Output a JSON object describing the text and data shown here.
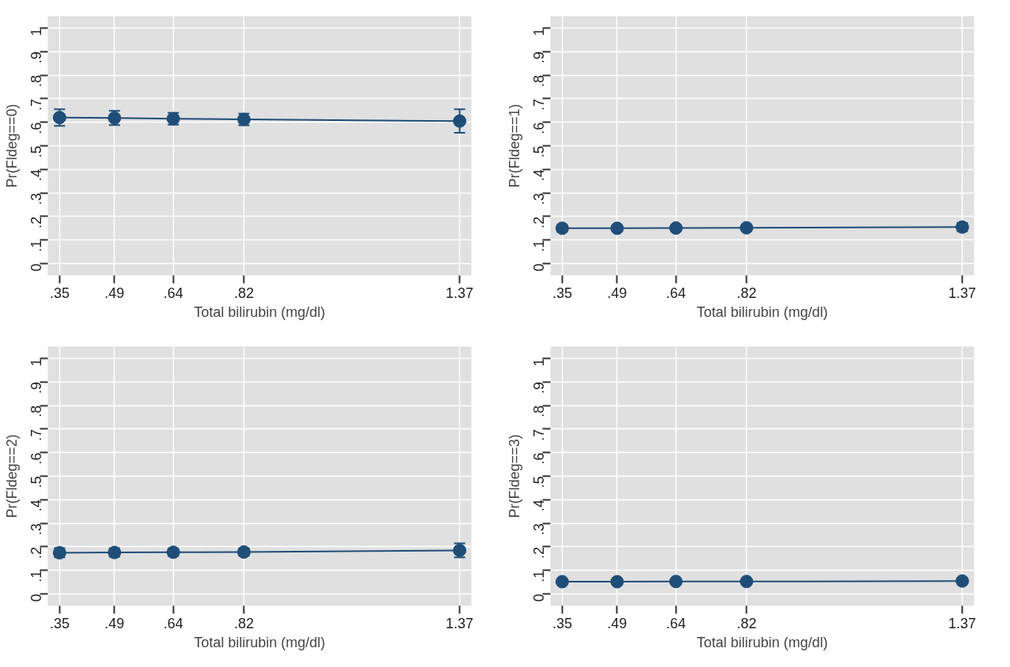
{
  "chart_data": [
    {
      "type": "line",
      "xlabel": "Total bilirubin (mg/dl)",
      "ylabel": "Pr(Fldeg==0)",
      "x": [
        0.35,
        0.49,
        0.64,
        0.82,
        1.37
      ],
      "series": [
        {
          "color": "#1f4e79",
          "values": [
            0.62,
            0.618,
            0.615,
            0.612,
            0.605
          ],
          "errors": [
            0.035,
            0.03,
            0.025,
            0.025,
            0.05
          ]
        }
      ],
      "xlim": [
        0.32,
        1.4
      ],
      "ylim": [
        -0.05,
        1.05
      ],
      "marker": "circle",
      "grid": true,
      "xticks": [
        {
          "value": 0.35,
          "label": ".35"
        },
        {
          "value": 0.49,
          "label": ".49"
        },
        {
          "value": 0.64,
          "label": ".64"
        },
        {
          "value": 0.82,
          "label": ".82"
        },
        {
          "value": 1.37,
          "label": "1.37"
        }
      ],
      "yticks": [
        0,
        {
          "value": 0.1,
          "label": ".1"
        },
        {
          "value": 0.2,
          "label": ".2"
        },
        {
          "value": 0.3,
          "label": ".3"
        },
        {
          "value": 0.4,
          "label": ".4"
        },
        {
          "value": 0.5,
          "label": ".5"
        },
        {
          "value": 0.6,
          "label": ".6"
        },
        {
          "value": 0.7,
          "label": ".7"
        },
        {
          "value": 0.8,
          "label": ".8"
        },
        {
          "value": 0.9,
          "label": ".9"
        },
        1
      ]
    },
    {
      "type": "line",
      "xlabel": "Total bilirubin (mg/dl)",
      "ylabel": "Pr(Fldeg==1)",
      "x": [
        0.35,
        0.49,
        0.64,
        0.82,
        1.37
      ],
      "series": [
        {
          "color": "#1f4e79",
          "values": [
            0.15,
            0.15,
            0.151,
            0.152,
            0.155
          ],
          "errors": [
            0.015,
            0.013,
            0.012,
            0.012,
            0.018
          ]
        }
      ],
      "xlim": [
        0.32,
        1.4
      ],
      "ylim": [
        -0.05,
        1.05
      ],
      "marker": "circle",
      "grid": true,
      "xticks": [
        {
          "value": 0.35,
          "label": ".35"
        },
        {
          "value": 0.49,
          "label": ".49"
        },
        {
          "value": 0.64,
          "label": ".64"
        },
        {
          "value": 0.82,
          "label": ".82"
        },
        {
          "value": 1.37,
          "label": "1.37"
        }
      ],
      "yticks": [
        0,
        {
          "value": 0.1,
          "label": ".1"
        },
        {
          "value": 0.2,
          "label": ".2"
        },
        {
          "value": 0.3,
          "label": ".3"
        },
        {
          "value": 0.4,
          "label": ".4"
        },
        {
          "value": 0.5,
          "label": ".5"
        },
        {
          "value": 0.6,
          "label": ".6"
        },
        {
          "value": 0.7,
          "label": ".7"
        },
        {
          "value": 0.8,
          "label": ".8"
        },
        {
          "value": 0.9,
          "label": ".9"
        },
        1
      ]
    },
    {
      "type": "line",
      "xlabel": "Total bilirubin (mg/dl)",
      "ylabel": "Pr(Fldeg==2)",
      "x": [
        0.35,
        0.49,
        0.64,
        0.82,
        1.37
      ],
      "series": [
        {
          "color": "#1f4e79",
          "values": [
            0.175,
            0.176,
            0.177,
            0.178,
            0.185
          ],
          "errors": [
            0.02,
            0.018,
            0.016,
            0.016,
            0.03
          ]
        }
      ],
      "xlim": [
        0.32,
        1.4
      ],
      "ylim": [
        -0.05,
        1.05
      ],
      "marker": "circle",
      "grid": true,
      "xticks": [
        {
          "value": 0.35,
          "label": ".35"
        },
        {
          "value": 0.49,
          "label": ".49"
        },
        {
          "value": 0.64,
          "label": ".64"
        },
        {
          "value": 0.82,
          "label": ".82"
        },
        {
          "value": 1.37,
          "label": "1.37"
        }
      ],
      "yticks": [
        0,
        {
          "value": 0.1,
          "label": ".1"
        },
        {
          "value": 0.2,
          "label": ".2"
        },
        {
          "value": 0.3,
          "label": ".3"
        },
        {
          "value": 0.4,
          "label": ".4"
        },
        {
          "value": 0.5,
          "label": ".5"
        },
        {
          "value": 0.6,
          "label": ".6"
        },
        {
          "value": 0.7,
          "label": ".7"
        },
        {
          "value": 0.8,
          "label": ".8"
        },
        {
          "value": 0.9,
          "label": ".9"
        },
        1
      ]
    },
    {
      "type": "line",
      "xlabel": "Total bilirubin (mg/dl)",
      "ylabel": "Pr(Fldeg==3)",
      "x": [
        0.35,
        0.49,
        0.64,
        0.82,
        1.37
      ],
      "series": [
        {
          "color": "#1f4e79",
          "values": [
            0.052,
            0.052,
            0.053,
            0.053,
            0.055
          ],
          "errors": [
            0.008,
            0.007,
            0.006,
            0.006,
            0.01
          ]
        }
      ],
      "xlim": [
        0.32,
        1.4
      ],
      "ylim": [
        -0.05,
        1.05
      ],
      "marker": "circle",
      "grid": true,
      "xticks": [
        {
          "value": 0.35,
          "label": ".35"
        },
        {
          "value": 0.49,
          "label": ".49"
        },
        {
          "value": 0.64,
          "label": ".64"
        },
        {
          "value": 0.82,
          "label": ".82"
        },
        {
          "value": 1.37,
          "label": "1.37"
        }
      ],
      "yticks": [
        0,
        {
          "value": 0.1,
          "label": ".1"
        },
        {
          "value": 0.2,
          "label": ".2"
        },
        {
          "value": 0.3,
          "label": ".3"
        },
        {
          "value": 0.4,
          "label": ".4"
        },
        {
          "value": 0.5,
          "label": ".5"
        },
        {
          "value": 0.6,
          "label": ".6"
        },
        {
          "value": 0.7,
          "label": ".7"
        },
        {
          "value": 0.8,
          "label": ".8"
        },
        {
          "value": 0.9,
          "label": ".9"
        },
        1
      ]
    }
  ]
}
